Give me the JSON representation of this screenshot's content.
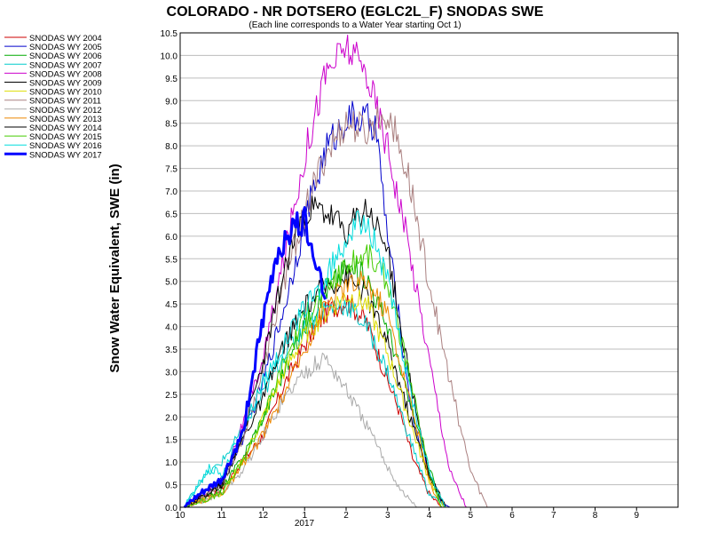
{
  "chart_data": {
    "type": "line",
    "title": "COLORADO - NR DOTSERO (EGLC2L_F) SNODAS SWE",
    "subtitle": "(Each line corresponds to a Water Year starting Oct 1)",
    "ylabel": "Snow Water Equivalent, SWE (in)",
    "xlabel": "",
    "ylim": [
      0,
      10.5
    ],
    "y_ticks": [
      "0.0",
      "0.5",
      "1.0",
      "1.5",
      "2.0",
      "2.5",
      "3.0",
      "3.5",
      "4.0",
      "4.5",
      "5.0",
      "5.5",
      "6.0",
      "6.5",
      "7.0",
      "7.5",
      "8.0",
      "8.5",
      "9.0",
      "9.5",
      "10.0",
      "10.5"
    ],
    "x_ticks": [
      "10",
      "11",
      "12",
      "1",
      "2",
      "3",
      "4",
      "5",
      "6",
      "7",
      "8",
      "9"
    ],
    "x_year_label": "2017",
    "x_unit": "month (water year Oct 1 – Sep 30)",
    "grid": true,
    "legend_position": "top-left",
    "series": [
      {
        "name": "SNODAS WY 2004",
        "color": "#cc0000",
        "width": 1,
        "x": [
          0.1,
          1.0,
          1.5,
          2.0,
          2.5,
          3.0,
          3.5,
          4.0,
          4.5,
          5.0,
          5.3,
          5.6,
          6.0,
          6.3
        ],
        "y": [
          0,
          0.4,
          1.0,
          1.6,
          2.7,
          3.6,
          4.3,
          4.6,
          4.1,
          2.8,
          2.1,
          1.1,
          0.3,
          0
        ]
      },
      {
        "name": "SNODAS WY 2005",
        "color": "#0000cc",
        "width": 1,
        "x": [
          0.1,
          1.0,
          1.5,
          2.0,
          2.5,
          3.0,
          3.5,
          4.0,
          4.3,
          4.7,
          5.0,
          5.3,
          5.6,
          6.0,
          6.3,
          6.5
        ],
        "y": [
          0,
          0.6,
          1.5,
          2.8,
          4.4,
          6.3,
          7.9,
          8.6,
          8.6,
          8.5,
          6.0,
          4.0,
          2.0,
          0.8,
          0.1,
          0
        ]
      },
      {
        "name": "SNODAS WY 2006",
        "color": "#00aa00",
        "width": 1,
        "x": [
          0.1,
          1.0,
          1.5,
          2.0,
          2.5,
          3.0,
          3.5,
          4.0,
          4.5,
          5.0,
          5.5,
          6.0,
          6.3,
          12.0
        ],
        "y": [
          0,
          0.4,
          1.1,
          2.0,
          3.0,
          4.0,
          4.8,
          5.3,
          5.1,
          4.0,
          2.4,
          0.9,
          0,
          0
        ]
      },
      {
        "name": "SNODAS WY 2007",
        "color": "#00cccc",
        "width": 1,
        "x": [
          0.1,
          0.5,
          1.0,
          1.5,
          2.0,
          2.5,
          3.0,
          3.5,
          4.0,
          4.5,
          5.0,
          5.5,
          6.0,
          6.4
        ],
        "y": [
          0,
          0.6,
          1.0,
          1.7,
          2.5,
          3.4,
          4.0,
          4.4,
          4.5,
          4.0,
          3.0,
          1.6,
          0.3,
          0
        ]
      },
      {
        "name": "SNODAS WY 2008",
        "color": "#cc00cc",
        "width": 1,
        "x": [
          0.1,
          1.0,
          1.5,
          2.0,
          2.5,
          3.0,
          3.5,
          4.0,
          4.5,
          5.0,
          5.5,
          6.0,
          6.5,
          6.9
        ],
        "y": [
          0,
          0.6,
          1.8,
          3.3,
          5.5,
          7.8,
          9.6,
          10.2,
          9.6,
          8.0,
          5.8,
          3.3,
          0.8,
          0
        ]
      },
      {
        "name": "SNODAS WY 2009",
        "color": "#000000",
        "width": 1,
        "x": [
          0.1,
          1.0,
          1.5,
          2.0,
          2.5,
          3.0,
          3.5,
          4.0,
          4.5,
          5.0,
          5.5,
          6.0,
          6.4
        ],
        "y": [
          0,
          0.5,
          1.5,
          2.4,
          3.6,
          4.4,
          4.9,
          5.1,
          4.7,
          3.6,
          2.1,
          0.7,
          0
        ]
      },
      {
        "name": "SNODAS WY 2010",
        "color": "#dddd00",
        "width": 1,
        "x": [
          0.1,
          1.0,
          1.5,
          2.0,
          2.5,
          3.0,
          3.5,
          4.0,
          4.5,
          5.0,
          5.5,
          6.0,
          6.4
        ],
        "y": [
          0,
          0.3,
          1.0,
          2.0,
          3.0,
          3.8,
          4.3,
          4.7,
          4.5,
          3.4,
          2.0,
          0.6,
          0
        ]
      },
      {
        "name": "SNODAS WY 2011",
        "color": "#aa8080",
        "width": 1,
        "x": [
          0.1,
          1.0,
          1.5,
          2.0,
          2.5,
          3.0,
          3.5,
          4.0,
          4.5,
          5.0,
          5.5,
          6.0,
          6.5,
          7.0,
          7.4
        ],
        "y": [
          0,
          0.5,
          1.5,
          3.0,
          5.0,
          6.5,
          7.8,
          8.5,
          8.3,
          8.8,
          7.3,
          5.0,
          2.8,
          0.8,
          0
        ]
      },
      {
        "name": "SNODAS WY 2012",
        "color": "#aaaaaa",
        "width": 1,
        "x": [
          0.1,
          1.0,
          1.5,
          2.0,
          2.5,
          3.0,
          3.5,
          4.0,
          4.5,
          5.0,
          5.3,
          5.7
        ],
        "y": [
          0,
          0.3,
          0.8,
          1.6,
          2.4,
          3.0,
          3.3,
          2.6,
          1.8,
          0.9,
          0.4,
          0
        ]
      },
      {
        "name": "SNODAS WY 2013",
        "color": "#ee8800",
        "width": 1,
        "x": [
          0.1,
          1.0,
          1.5,
          2.0,
          2.5,
          3.0,
          3.5,
          4.0,
          4.5,
          5.0,
          5.5,
          6.0,
          6.3
        ],
        "y": [
          0,
          0.3,
          0.9,
          1.6,
          2.5,
          3.5,
          4.5,
          4.9,
          5.0,
          4.3,
          2.5,
          0.6,
          0
        ]
      },
      {
        "name": "SNODAS WY 2014",
        "color": "#000000",
        "width": 1,
        "x": [
          0.1,
          1.0,
          1.5,
          2.0,
          2.5,
          3.0,
          3.5,
          4.0,
          4.5,
          5.0,
          5.5,
          6.0,
          6.4
        ],
        "y": [
          0,
          0.5,
          1.6,
          3.2,
          5.2,
          6.6,
          6.5,
          6.1,
          6.6,
          5.7,
          3.0,
          0.7,
          0
        ]
      },
      {
        "name": "SNODAS WY 2015",
        "color": "#44cc00",
        "width": 1,
        "x": [
          0.1,
          1.0,
          1.5,
          2.0,
          2.5,
          3.0,
          3.5,
          4.0,
          4.5,
          5.0,
          5.5,
          6.0,
          6.3
        ],
        "y": [
          0,
          0.3,
          1.0,
          2.0,
          3.2,
          4.2,
          4.8,
          5.3,
          5.6,
          5.0,
          3.0,
          0.8,
          0
        ]
      },
      {
        "name": "SNODAS WY 2016",
        "color": "#00dddd",
        "width": 1,
        "x": [
          0.1,
          0.7,
          1.0,
          1.5,
          2.0,
          2.5,
          3.0,
          3.5,
          4.0,
          4.5,
          5.0,
          5.5,
          6.0,
          6.4
        ],
        "y": [
          0,
          0.9,
          0.7,
          1.7,
          2.8,
          3.6,
          4.4,
          5.0,
          6.0,
          6.4,
          5.0,
          2.8,
          0.8,
          0
        ]
      },
      {
        "name": "SNODAS WY 2017",
        "color": "#0000ff",
        "width": 3,
        "x": [
          0.1,
          0.5,
          1.0,
          1.5,
          1.8,
          2.0,
          2.3,
          2.6,
          3.0,
          3.2,
          3.5
        ],
        "y": [
          0,
          0.3,
          0.6,
          1.6,
          3.2,
          4.1,
          5.5,
          6.1,
          6.3,
          5.8,
          4.6
        ]
      }
    ]
  }
}
